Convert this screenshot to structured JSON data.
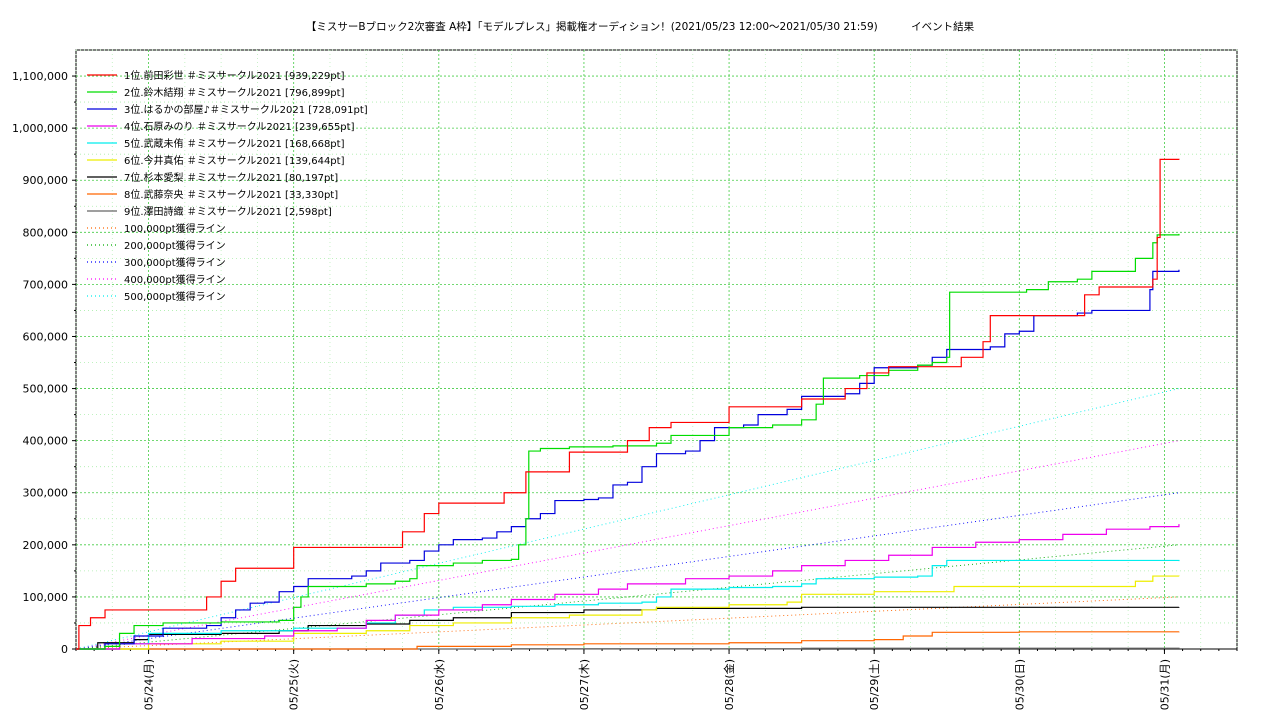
{
  "title": "【ミスサーBブロック2次審査 A枠】「モデルプレス」掲載権オーディション！(2021/05/23 12:00～2021/05/30 21:59)          イベント結果",
  "chart_data": {
    "type": "line",
    "title": "【ミスサーBブロック2次審査 A枠】「モデルプレス」掲載権オーディション！(2021/05/23 12:00～2021/05/30 21:59)          イベント結果",
    "x_range": [
      "2021-05-23 12:00",
      "2021-05-31 12:00"
    ],
    "ylim": [
      0,
      1150000
    ],
    "y_ticks": [
      0,
      100000,
      200000,
      300000,
      400000,
      500000,
      600000,
      700000,
      800000,
      900000,
      1000000,
      1100000
    ],
    "y_tick_labels": [
      "0",
      "100,000",
      "200,000",
      "300,000",
      "400,000",
      "500,000",
      "600,000",
      "700,000",
      "800,000",
      "900,000",
      "1,000,000",
      "1,100,000"
    ],
    "x_ticks": [
      "2021-05-24",
      "2021-05-25",
      "2021-05-26",
      "2021-05-27",
      "2021-05-28",
      "2021-05-29",
      "2021-05-30",
      "2021-05-31"
    ],
    "x_tick_labels": [
      "05/24(月)",
      "05/25(火)",
      "05/26(水)",
      "05/27(木)",
      "05/28(金)",
      "05/29(土)",
      "05/30(日)",
      "05/31(月)"
    ],
    "grid": true,
    "legend_position": "top-left",
    "series": [
      {
        "name": "1位.前田彩世 ＃ミスサークル2021 [939,229pt]",
        "color": "#ff0000",
        "points": [
          [
            0.0,
            0
          ],
          [
            0.02,
            45000
          ],
          [
            0.1,
            60000
          ],
          [
            0.2,
            75000
          ],
          [
            0.5,
            75000
          ],
          [
            0.9,
            75000
          ],
          [
            0.9,
            100000
          ],
          [
            1.0,
            130000
          ],
          [
            1.1,
            155000
          ],
          [
            1.4,
            155000
          ],
          [
            1.5,
            195000
          ],
          [
            1.9,
            195000
          ],
          [
            2.2,
            195000
          ],
          [
            2.25,
            225000
          ],
          [
            2.4,
            260000
          ],
          [
            2.5,
            280000
          ],
          [
            2.8,
            280000
          ],
          [
            2.95,
            300000
          ],
          [
            3.1,
            340000
          ],
          [
            3.3,
            340000
          ],
          [
            3.4,
            378000
          ],
          [
            3.7,
            378000
          ],
          [
            3.8,
            400000
          ],
          [
            3.95,
            425000
          ],
          [
            4.1,
            435000
          ],
          [
            4.4,
            435000
          ],
          [
            4.5,
            465000
          ],
          [
            4.8,
            465000
          ],
          [
            4.9,
            465000
          ],
          [
            5.0,
            480000
          ],
          [
            5.2,
            480000
          ],
          [
            5.3,
            500000
          ],
          [
            5.45,
            530000
          ],
          [
            5.6,
            542000
          ],
          [
            6.0,
            542000
          ],
          [
            6.1,
            560000
          ],
          [
            6.25,
            590000
          ],
          [
            6.3,
            640000
          ],
          [
            6.5,
            640000
          ],
          [
            6.85,
            640000
          ],
          [
            6.95,
            680000
          ],
          [
            7.05,
            695000
          ],
          [
            7.3,
            695000
          ],
          [
            7.42,
            710000
          ],
          [
            7.45,
            790000
          ],
          [
            7.47,
            940000
          ],
          [
            7.6,
            939229
          ]
        ]
      },
      {
        "name": "2位.鈴木結翔 ＃ミスサークル2021 [796,899pt]",
        "color": "#00dd00",
        "points": [
          [
            0.0,
            0
          ],
          [
            0.2,
            5000
          ],
          [
            0.3,
            30000
          ],
          [
            0.4,
            45000
          ],
          [
            0.6,
            50000
          ],
          [
            1.0,
            52000
          ],
          [
            1.4,
            55000
          ],
          [
            1.5,
            80000
          ],
          [
            1.55,
            100000
          ],
          [
            1.6,
            120000
          ],
          [
            2.0,
            125000
          ],
          [
            2.2,
            130000
          ],
          [
            2.3,
            135000
          ],
          [
            2.35,
            160000
          ],
          [
            2.6,
            165000
          ],
          [
            2.8,
            170000
          ],
          [
            3.0,
            172000
          ],
          [
            3.05,
            200000
          ],
          [
            3.1,
            250000
          ],
          [
            3.12,
            380000
          ],
          [
            3.2,
            385000
          ],
          [
            3.4,
            388000
          ],
          [
            3.7,
            390000
          ],
          [
            4.0,
            395000
          ],
          [
            4.1,
            410000
          ],
          [
            4.4,
            410000
          ],
          [
            4.5,
            425000
          ],
          [
            4.8,
            430000
          ],
          [
            5.0,
            440000
          ],
          [
            5.1,
            470000
          ],
          [
            5.15,
            520000
          ],
          [
            5.4,
            525000
          ],
          [
            5.6,
            535000
          ],
          [
            5.8,
            545000
          ],
          [
            5.9,
            550000
          ],
          [
            6.0,
            560000
          ],
          [
            6.02,
            685000
          ],
          [
            6.3,
            685000
          ],
          [
            6.55,
            690000
          ],
          [
            6.7,
            705000
          ],
          [
            6.9,
            710000
          ],
          [
            7.0,
            725000
          ],
          [
            7.3,
            750000
          ],
          [
            7.42,
            780000
          ],
          [
            7.45,
            795000
          ],
          [
            7.6,
            796899
          ]
        ]
      },
      {
        "name": "3位.はるかの部屋♪＃ミスサークル2021 [728,091pt]",
        "color": "#0000dd",
        "points": [
          [
            0.0,
            0
          ],
          [
            0.2,
            10000
          ],
          [
            0.4,
            25000
          ],
          [
            0.6,
            40000
          ],
          [
            0.9,
            45000
          ],
          [
            1.0,
            60000
          ],
          [
            1.1,
            75000
          ],
          [
            1.2,
            88000
          ],
          [
            1.3,
            90000
          ],
          [
            1.4,
            110000
          ],
          [
            1.5,
            120000
          ],
          [
            1.6,
            135000
          ],
          [
            1.9,
            140000
          ],
          [
            2.0,
            150000
          ],
          [
            2.1,
            165000
          ],
          [
            2.3,
            170000
          ],
          [
            2.4,
            188000
          ],
          [
            2.5,
            200000
          ],
          [
            2.6,
            210000
          ],
          [
            2.8,
            213000
          ],
          [
            2.9,
            225000
          ],
          [
            3.0,
            235000
          ],
          [
            3.1,
            250000
          ],
          [
            3.2,
            260000
          ],
          [
            3.3,
            285000
          ],
          [
            3.5,
            287000
          ],
          [
            3.6,
            290000
          ],
          [
            3.7,
            315000
          ],
          [
            3.8,
            320000
          ],
          [
            3.9,
            350000
          ],
          [
            4.0,
            375000
          ],
          [
            4.2,
            380000
          ],
          [
            4.3,
            400000
          ],
          [
            4.4,
            425000
          ],
          [
            4.6,
            430000
          ],
          [
            4.7,
            450000
          ],
          [
            4.9,
            460000
          ],
          [
            5.0,
            485000
          ],
          [
            5.3,
            490000
          ],
          [
            5.4,
            510000
          ],
          [
            5.5,
            540000
          ],
          [
            5.8,
            545000
          ],
          [
            5.9,
            560000
          ],
          [
            6.0,
            575000
          ],
          [
            6.3,
            580000
          ],
          [
            6.4,
            605000
          ],
          [
            6.5,
            610000
          ],
          [
            6.6,
            640000
          ],
          [
            6.9,
            645000
          ],
          [
            7.0,
            650000
          ],
          [
            7.4,
            690000
          ],
          [
            7.42,
            725000
          ],
          [
            7.6,
            728091
          ]
        ]
      },
      {
        "name": "4位.石原みのり ＃ミスサークル2021 [239,655pt]",
        "color": "#ee00ee",
        "points": [
          [
            0.0,
            0
          ],
          [
            0.3,
            10000
          ],
          [
            0.8,
            20000
          ],
          [
            1.3,
            25000
          ],
          [
            1.5,
            35000
          ],
          [
            1.8,
            40000
          ],
          [
            2.0,
            55000
          ],
          [
            2.2,
            65000
          ],
          [
            2.5,
            75000
          ],
          [
            2.8,
            85000
          ],
          [
            3.0,
            95000
          ],
          [
            3.3,
            105000
          ],
          [
            3.6,
            115000
          ],
          [
            3.8,
            125000
          ],
          [
            4.2,
            135000
          ],
          [
            4.5,
            140000
          ],
          [
            4.8,
            150000
          ],
          [
            5.0,
            160000
          ],
          [
            5.3,
            170000
          ],
          [
            5.6,
            180000
          ],
          [
            5.9,
            195000
          ],
          [
            6.2,
            205000
          ],
          [
            6.5,
            210000
          ],
          [
            6.8,
            220000
          ],
          [
            7.1,
            230000
          ],
          [
            7.4,
            235000
          ],
          [
            7.6,
            239655
          ]
        ]
      },
      {
        "name": "5位.武蔵未侑 ＃ミスサークル2021 [168,668pt]",
        "color": "#00eeee",
        "points": [
          [
            0.0,
            0
          ],
          [
            0.3,
            10000
          ],
          [
            0.5,
            30000
          ],
          [
            1.0,
            35000
          ],
          [
            1.5,
            40000
          ],
          [
            2.0,
            50000
          ],
          [
            2.2,
            65000
          ],
          [
            2.4,
            75000
          ],
          [
            2.6,
            80000
          ],
          [
            3.0,
            82000
          ],
          [
            3.3,
            85000
          ],
          [
            3.6,
            88000
          ],
          [
            3.9,
            90000
          ],
          [
            4.0,
            100000
          ],
          [
            4.1,
            115000
          ],
          [
            4.5,
            118000
          ],
          [
            4.8,
            120000
          ],
          [
            5.0,
            125000
          ],
          [
            5.1,
            135000
          ],
          [
            5.5,
            138000
          ],
          [
            5.8,
            140000
          ],
          [
            5.9,
            160000
          ],
          [
            6.0,
            170000
          ],
          [
            6.5,
            170000
          ],
          [
            7.0,
            170000
          ],
          [
            7.6,
            168668
          ]
        ]
      },
      {
        "name": "6位.今井真佑 ＃ミスサークル2021 [139,644pt]",
        "color": "#eeee00",
        "points": [
          [
            0.0,
            0
          ],
          [
            0.5,
            10000
          ],
          [
            1.0,
            15000
          ],
          [
            1.5,
            30000
          ],
          [
            2.0,
            35000
          ],
          [
            2.3,
            45000
          ],
          [
            2.6,
            50000
          ],
          [
            3.0,
            60000
          ],
          [
            3.4,
            65000
          ],
          [
            3.9,
            75000
          ],
          [
            4.0,
            80000
          ],
          [
            4.5,
            85000
          ],
          [
            4.9,
            90000
          ],
          [
            5.0,
            105000
          ],
          [
            5.5,
            110000
          ],
          [
            6.0,
            110000
          ],
          [
            6.05,
            120000
          ],
          [
            6.5,
            120000
          ],
          [
            7.0,
            120000
          ],
          [
            7.3,
            130000
          ],
          [
            7.42,
            140000
          ],
          [
            7.6,
            139644
          ]
        ]
      },
      {
        "name": "7位.杉本愛梨 ＃ミスサークル2021 [80,197pt]",
        "color": "#000000",
        "points": [
          [
            0.0,
            0
          ],
          [
            0.15,
            12000
          ],
          [
            0.4,
            18000
          ],
          [
            0.5,
            28000
          ],
          [
            1.0,
            30000
          ],
          [
            1.4,
            35000
          ],
          [
            1.6,
            45000
          ],
          [
            2.0,
            48000
          ],
          [
            2.3,
            55000
          ],
          [
            2.6,
            60000
          ],
          [
            3.0,
            70000
          ],
          [
            3.5,
            75000
          ],
          [
            4.0,
            78000
          ],
          [
            5.0,
            80000
          ],
          [
            6.0,
            80000
          ],
          [
            7.0,
            80000
          ],
          [
            7.6,
            80197
          ]
        ]
      },
      {
        "name": "8位.武藤奈央 ＃ミスサークル2021 [33,330pt]",
        "color": "#ff6600",
        "points": [
          [
            0.0,
            0
          ],
          [
            2.3,
            0
          ],
          [
            2.35,
            5000
          ],
          [
            3.0,
            8000
          ],
          [
            3.5,
            10000
          ],
          [
            4.5,
            12000
          ],
          [
            5.0,
            16000
          ],
          [
            5.5,
            18000
          ],
          [
            5.7,
            25000
          ],
          [
            5.9,
            32000
          ],
          [
            6.5,
            33000
          ],
          [
            7.6,
            33330
          ]
        ]
      },
      {
        "name": "9位.澤田詩織 ＃ミスサークル2021 [2,598pt]",
        "color": "#666666",
        "points": [
          [
            0.0,
            0
          ],
          [
            3.0,
            500
          ],
          [
            5.0,
            1500
          ],
          [
            7.6,
            2598
          ]
        ]
      }
    ],
    "reference_lines": [
      {
        "name": "100,000pt獲得ライン",
        "color": "#ff6600",
        "target": 100000
      },
      {
        "name": "200,000pt獲得ライン",
        "color": "#00aa00",
        "target": 200000
      },
      {
        "name": "300,000pt獲得ライン",
        "color": "#0000ff",
        "target": 300000
      },
      {
        "name": "400,000pt獲得ライン",
        "color": "#ff00ff",
        "target": 400000
      },
      {
        "name": "500,000pt獲得ライン",
        "color": "#00eeee",
        "target": 500000
      }
    ]
  }
}
